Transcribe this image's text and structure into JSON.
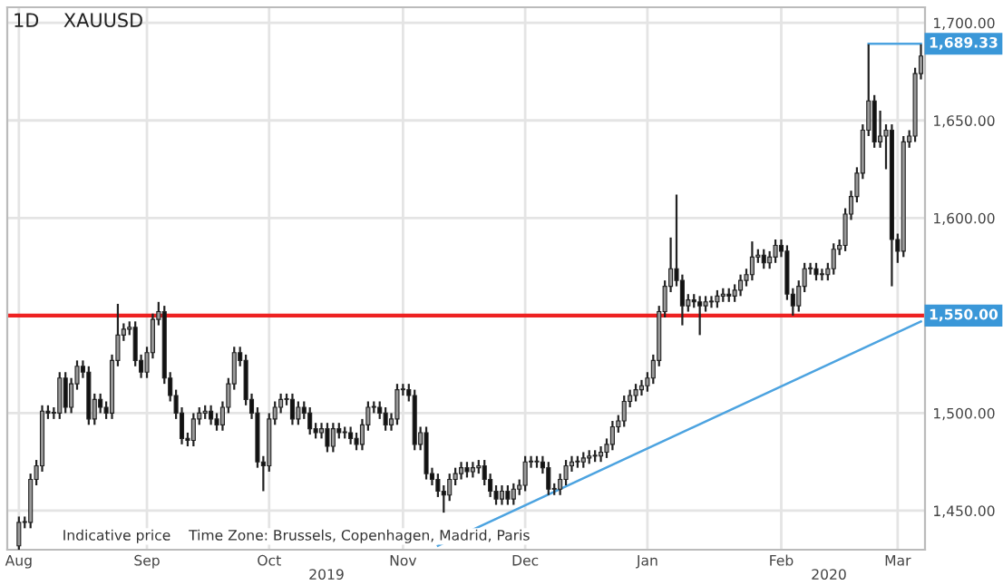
{
  "chart_data": {
    "type": "candlestick",
    "title": "1D    XAUUSD",
    "categories": [
      "Aug",
      null,
      null,
      null,
      null,
      null,
      null,
      null,
      null,
      null,
      null,
      null,
      null,
      null,
      null,
      null,
      null,
      null,
      null,
      null,
      null,
      null,
      "Sep",
      null,
      null,
      null,
      null,
      null,
      null,
      null,
      null,
      null,
      null,
      null,
      null,
      null,
      null,
      null,
      null,
      null,
      null,
      null,
      null,
      "Oct",
      null,
      null,
      null,
      null,
      null,
      null,
      null,
      null,
      null,
      null,
      null,
      null,
      null,
      null,
      null,
      null,
      null,
      null,
      null,
      null,
      null,
      null,
      "Nov",
      null,
      null,
      null,
      null,
      null,
      null,
      null,
      null,
      null,
      null,
      null,
      null,
      null,
      null,
      null,
      null,
      null,
      null,
      null,
      null,
      "Dec",
      null,
      null,
      null,
      null,
      null,
      null,
      null,
      null,
      null,
      null,
      null,
      null,
      null,
      null,
      null,
      null,
      null,
      null,
      null,
      null,
      "Jan",
      null,
      null,
      null,
      null,
      null,
      null,
      null,
      null,
      null,
      null,
      null,
      null,
      null,
      null,
      null,
      null,
      null,
      null,
      null,
      null,
      null,
      null,
      "Feb",
      null,
      null,
      null,
      null,
      null,
      null,
      null,
      null,
      null,
      null,
      null,
      null,
      null,
      null,
      null,
      null,
      null,
      null,
      null,
      "Mar",
      null,
      null,
      null,
      null
    ],
    "ohlc": [
      [
        1432,
        1447,
        1429,
        1444
      ],
      [
        1444,
        1447,
        1441,
        1444
      ],
      [
        1444,
        1469,
        1441,
        1466
      ],
      [
        1466,
        1476,
        1463,
        1473
      ],
      [
        1473,
        1504,
        1470,
        1501
      ],
      [
        1501,
        1504,
        1497,
        1500
      ],
      [
        1500,
        1503,
        1497,
        1500
      ],
      [
        1500,
        1521,
        1497,
        1518
      ],
      [
        1518,
        1521,
        1500,
        1503
      ],
      [
        1503,
        1518,
        1500,
        1515
      ],
      [
        1515,
        1527,
        1512,
        1524
      ],
      [
        1524,
        1527,
        1518,
        1521
      ],
      [
        1521,
        1524,
        1494,
        1497
      ],
      [
        1497,
        1510,
        1494,
        1507
      ],
      [
        1507,
        1510,
        1500,
        1503
      ],
      [
        1503,
        1506,
        1497,
        1500
      ],
      [
        1500,
        1530,
        1497,
        1527
      ],
      [
        1527,
        1556,
        1524,
        1540
      ],
      [
        1540,
        1546,
        1537,
        1543
      ],
      [
        1543,
        1547,
        1540,
        1544
      ],
      [
        1544,
        1547,
        1524,
        1527
      ],
      [
        1527,
        1530,
        1518,
        1521
      ],
      [
        1521,
        1534,
        1518,
        1531
      ],
      [
        1531,
        1551,
        1528,
        1548
      ],
      [
        1548,
        1557,
        1545,
        1552
      ],
      [
        1552,
        1555,
        1515,
        1518
      ],
      [
        1518,
        1521,
        1506,
        1509
      ],
      [
        1509,
        1512,
        1497,
        1500
      ],
      [
        1500,
        1503,
        1484,
        1487
      ],
      [
        1487,
        1490,
        1483,
        1486
      ],
      [
        1486,
        1500,
        1483,
        1497
      ],
      [
        1497,
        1503,
        1494,
        1500
      ],
      [
        1500,
        1504,
        1497,
        1501
      ],
      [
        1501,
        1504,
        1494,
        1497
      ],
      [
        1497,
        1500,
        1491,
        1494
      ],
      [
        1494,
        1506,
        1491,
        1503
      ],
      [
        1503,
        1518,
        1500,
        1515
      ],
      [
        1515,
        1534,
        1512,
        1531
      ],
      [
        1531,
        1534,
        1524,
        1527
      ],
      [
        1527,
        1530,
        1504,
        1507
      ],
      [
        1507,
        1510,
        1497,
        1500
      ],
      [
        1500,
        1503,
        1472,
        1475
      ],
      [
        1475,
        1478,
        1460,
        1473
      ],
      [
        1473,
        1500,
        1470,
        1497
      ],
      [
        1497,
        1506,
        1494,
        1503
      ],
      [
        1503,
        1510,
        1500,
        1507
      ],
      [
        1507,
        1510,
        1504,
        1507
      ],
      [
        1507,
        1510,
        1494,
        1497
      ],
      [
        1497,
        1506,
        1494,
        1503
      ],
      [
        1503,
        1506,
        1497,
        1500
      ],
      [
        1500,
        1503,
        1489,
        1492
      ],
      [
        1492,
        1495,
        1487,
        1490
      ],
      [
        1490,
        1495,
        1487,
        1492
      ],
      [
        1492,
        1495,
        1480,
        1483
      ],
      [
        1483,
        1495,
        1480,
        1492
      ],
      [
        1492,
        1495,
        1487,
        1490
      ],
      [
        1490,
        1493,
        1487,
        1490
      ],
      [
        1490,
        1493,
        1484,
        1487
      ],
      [
        1487,
        1490,
        1481,
        1484
      ],
      [
        1484,
        1497,
        1481,
        1494
      ],
      [
        1494,
        1506,
        1491,
        1503
      ],
      [
        1503,
        1506,
        1500,
        1503
      ],
      [
        1503,
        1506,
        1497,
        1500
      ],
      [
        1500,
        1503,
        1491,
        1494
      ],
      [
        1494,
        1500,
        1491,
        1497
      ],
      [
        1497,
        1515,
        1494,
        1512
      ],
      [
        1512,
        1515,
        1509,
        1512
      ],
      [
        1512,
        1515,
        1506,
        1509
      ],
      [
        1509,
        1512,
        1481,
        1484
      ],
      [
        1484,
        1493,
        1481,
        1490
      ],
      [
        1490,
        1493,
        1466,
        1469
      ],
      [
        1469,
        1472,
        1463,
        1466
      ],
      [
        1466,
        1469,
        1457,
        1460
      ],
      [
        1460,
        1463,
        1449,
        1458
      ],
      [
        1458,
        1469,
        1455,
        1466
      ],
      [
        1466,
        1472,
        1463,
        1469
      ],
      [
        1469,
        1475,
        1466,
        1472
      ],
      [
        1472,
        1475,
        1467,
        1470
      ],
      [
        1470,
        1475,
        1467,
        1472
      ],
      [
        1472,
        1476,
        1469,
        1473
      ],
      [
        1473,
        1476,
        1463,
        1466
      ],
      [
        1466,
        1469,
        1457,
        1460
      ],
      [
        1460,
        1463,
        1453,
        1456
      ],
      [
        1456,
        1463,
        1453,
        1460
      ],
      [
        1460,
        1463,
        1453,
        1456
      ],
      [
        1456,
        1464,
        1453,
        1461
      ],
      [
        1461,
        1466,
        1458,
        1463
      ],
      [
        1463,
        1478,
        1460,
        1475
      ],
      [
        1475,
        1478,
        1472,
        1475
      ],
      [
        1475,
        1478,
        1472,
        1475
      ],
      [
        1475,
        1478,
        1469,
        1472
      ],
      [
        1472,
        1475,
        1458,
        1461
      ],
      [
        1461,
        1464,
        1458,
        1461
      ],
      [
        1461,
        1469,
        1458,
        1466
      ],
      [
        1466,
        1476,
        1463,
        1473
      ],
      [
        1473,
        1478,
        1470,
        1475
      ],
      [
        1475,
        1478,
        1472,
        1475
      ],
      [
        1475,
        1480,
        1472,
        1477
      ],
      [
        1477,
        1481,
        1474,
        1478
      ],
      [
        1478,
        1481,
        1475,
        1478
      ],
      [
        1478,
        1483,
        1475,
        1480
      ],
      [
        1480,
        1487,
        1477,
        1484
      ],
      [
        1484,
        1496,
        1481,
        1493
      ],
      [
        1493,
        1499,
        1490,
        1496
      ],
      [
        1496,
        1509,
        1493,
        1506
      ],
      [
        1506,
        1512,
        1503,
        1509
      ],
      [
        1509,
        1515,
        1506,
        1512
      ],
      [
        1512,
        1517,
        1509,
        1514
      ],
      [
        1514,
        1521,
        1511,
        1518
      ],
      [
        1518,
        1530,
        1515,
        1527
      ],
      [
        1527,
        1555,
        1524,
        1552
      ],
      [
        1552,
        1568,
        1549,
        1565
      ],
      [
        1565,
        1590,
        1562,
        1574
      ],
      [
        1574,
        1612,
        1565,
        1568
      ],
      [
        1568,
        1571,
        1545,
        1555
      ],
      [
        1555,
        1561,
        1552,
        1558
      ],
      [
        1558,
        1561,
        1554,
        1557
      ],
      [
        1557,
        1560,
        1540,
        1555
      ],
      [
        1555,
        1560,
        1552,
        1557
      ],
      [
        1557,
        1560,
        1554,
        1557
      ],
      [
        1557,
        1563,
        1554,
        1560
      ],
      [
        1560,
        1564,
        1557,
        1561
      ],
      [
        1561,
        1564,
        1557,
        1560
      ],
      [
        1560,
        1566,
        1557,
        1563
      ],
      [
        1563,
        1571,
        1560,
        1568
      ],
      [
        1568,
        1574,
        1565,
        1571
      ],
      [
        1571,
        1588,
        1568,
        1580
      ],
      [
        1580,
        1584,
        1577,
        1581
      ],
      [
        1581,
        1584,
        1574,
        1577
      ],
      [
        1577,
        1583,
        1574,
        1580
      ],
      [
        1580,
        1589,
        1577,
        1586
      ],
      [
        1586,
        1589,
        1580,
        1583
      ],
      [
        1583,
        1586,
        1558,
        1561
      ],
      [
        1561,
        1564,
        1550,
        1555
      ],
      [
        1555,
        1568,
        1552,
        1565
      ],
      [
        1565,
        1577,
        1562,
        1574
      ],
      [
        1574,
        1577,
        1571,
        1574
      ],
      [
        1574,
        1577,
        1568,
        1571
      ],
      [
        1571,
        1574,
        1568,
        1571
      ],
      [
        1571,
        1577,
        1568,
        1574
      ],
      [
        1574,
        1587,
        1571,
        1584
      ],
      [
        1584,
        1589,
        1581,
        1586
      ],
      [
        1586,
        1605,
        1583,
        1602
      ],
      [
        1602,
        1614,
        1599,
        1611
      ],
      [
        1611,
        1626,
        1608,
        1623
      ],
      [
        1623,
        1648,
        1620,
        1645
      ],
      [
        1645,
        1689,
        1642,
        1660
      ],
      [
        1660,
        1663,
        1636,
        1639
      ],
      [
        1639,
        1655,
        1636,
        1642
      ],
      [
        1642,
        1648,
        1625,
        1645
      ],
      [
        1645,
        1648,
        1565,
        1589
      ],
      [
        1589,
        1592,
        1577,
        1583
      ],
      [
        1583,
        1642,
        1580,
        1639
      ],
      [
        1639,
        1645,
        1636,
        1642
      ],
      [
        1642,
        1677,
        1639,
        1674
      ],
      [
        1674,
        1689,
        1671,
        1683
      ]
    ],
    "series": [
      {
        "type": "line",
        "color": "#4ca3e0",
        "values": [
          null,
          null,
          null,
          null,
          null,
          null,
          null,
          null,
          null,
          null,
          null,
          null,
          null,
          null,
          null,
          null,
          null,
          null,
          null,
          null,
          null,
          null,
          null,
          null,
          null,
          null,
          null,
          null,
          null,
          null,
          null,
          null,
          null,
          null,
          null,
          null,
          null,
          null,
          null,
          null,
          null,
          null,
          null,
          null,
          null,
          null,
          null,
          null,
          null,
          null,
          null,
          null,
          null,
          null,
          null,
          null,
          null,
          null,
          null,
          null,
          null,
          null,
          null,
          null,
          null,
          null,
          null,
          null,
          null,
          null,
          null,
          null,
          1432,
          null,
          null,
          null,
          null,
          null,
          null,
          null,
          null,
          null,
          null,
          null,
          null,
          null,
          null,
          null,
          null,
          null,
          null,
          null,
          null,
          null,
          null,
          null,
          null,
          null,
          null,
          null,
          null,
          null,
          null,
          null,
          null,
          null,
          null,
          null,
          null,
          null,
          null,
          null,
          null,
          null,
          null,
          null,
          null,
          null,
          null,
          null,
          null,
          null,
          null,
          null,
          null,
          null,
          null,
          null,
          null,
          null,
          null,
          null,
          null,
          null,
          null,
          null,
          null,
          null,
          null,
          null,
          null,
          null,
          null,
          null,
          null,
          null,
          null,
          null,
          null,
          null,
          null,
          null,
          null,
          null,
          null,
          1547
        ]
      },
      {
        "type": "line",
        "color": "#4ca3e0",
        "values": [
          null,
          null,
          null,
          null,
          null,
          null,
          null,
          null,
          null,
          null,
          null,
          null,
          null,
          null,
          null,
          null,
          null,
          null,
          null,
          null,
          null,
          null,
          null,
          null,
          null,
          null,
          null,
          null,
          null,
          null,
          null,
          null,
          null,
          null,
          null,
          null,
          null,
          null,
          null,
          null,
          null,
          null,
          null,
          null,
          null,
          null,
          null,
          null,
          null,
          null,
          null,
          null,
          null,
          null,
          null,
          null,
          null,
          null,
          null,
          null,
          null,
          null,
          null,
          null,
          null,
          null,
          null,
          null,
          null,
          null,
          null,
          null,
          null,
          null,
          null,
          null,
          null,
          null,
          null,
          null,
          null,
          null,
          null,
          null,
          null,
          null,
          null,
          null,
          null,
          null,
          null,
          null,
          null,
          null,
          null,
          null,
          null,
          null,
          null,
          null,
          null,
          null,
          null,
          null,
          null,
          null,
          null,
          null,
          null,
          null,
          null,
          null,
          null,
          null,
          null,
          null,
          null,
          null,
          null,
          null,
          null,
          null,
          null,
          null,
          null,
          null,
          null,
          null,
          null,
          null,
          null,
          null,
          null,
          null,
          null,
          null,
          null,
          null,
          null,
          null,
          null,
          null,
          null,
          null,
          null,
          null,
          1689.33,
          null,
          null,
          null,
          null,
          null,
          null,
          null,
          null,
          1689.33
        ],
        "value_labels": [
          null,
          null,
          null,
          null,
          null,
          null,
          null,
          null,
          null,
          null,
          null,
          null,
          null,
          null,
          null,
          null,
          null,
          null,
          null,
          null,
          null,
          null,
          null,
          null,
          null,
          null,
          null,
          null,
          null,
          null,
          null,
          null,
          null,
          null,
          null,
          null,
          null,
          null,
          null,
          null,
          null,
          null,
          null,
          null,
          null,
          null,
          null,
          null,
          null,
          null,
          null,
          null,
          null,
          null,
          null,
          null,
          null,
          null,
          null,
          null,
          null,
          null,
          null,
          null,
          null,
          null,
          null,
          null,
          null,
          null,
          null,
          null,
          null,
          null,
          null,
          null,
          null,
          null,
          null,
          null,
          null,
          null,
          null,
          null,
          null,
          null,
          null,
          null,
          null,
          null,
          null,
          null,
          null,
          null,
          null,
          null,
          null,
          null,
          null,
          null,
          null,
          null,
          null,
          null,
          null,
          null,
          null,
          null,
          null,
          null,
          null,
          null,
          null,
          null,
          null,
          null,
          null,
          null,
          null,
          null,
          null,
          null,
          null,
          null,
          null,
          null,
          null,
          null,
          null,
          null,
          null,
          null,
          null,
          null,
          null,
          null,
          null,
          null,
          null,
          null,
          null,
          null,
          null,
          null,
          null,
          null,
          null,
          null,
          null,
          null,
          null,
          null,
          null,
          null,
          null,
          "1,689.33"
        ]
      }
    ],
    "ref_lines": [
      {
        "axis": "y",
        "value": 1550,
        "label": "1,550.00",
        "color": "#ee2222"
      }
    ],
    "ylim": [
      1430,
      1708
    ],
    "yticks": [
      {
        "value": 1450,
        "label": "1,450.00"
      },
      {
        "value": 1500,
        "label": "1,500.00"
      },
      {
        "value": 1550,
        "label": null
      },
      {
        "value": 1600,
        "label": "1,600.00"
      },
      {
        "value": 1650,
        "label": "1,650.00"
      },
      {
        "value": 1700,
        "label": "1,700.00"
      }
    ],
    "grid": true,
    "annotations": [
      "Indicative price    Time Zone: Brussels, Copenhagen, Madrid, Paris",
      "2019",
      "2020"
    ]
  }
}
